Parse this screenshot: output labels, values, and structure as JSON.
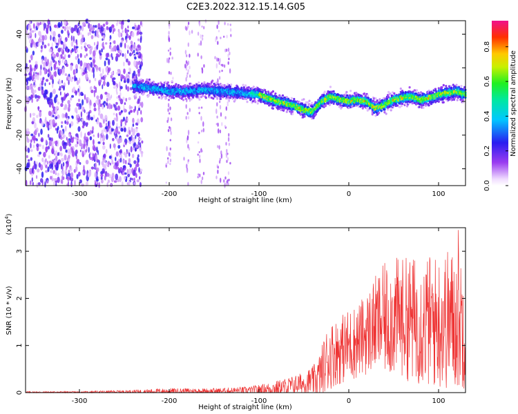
{
  "title": "C2E3.2022.312.15.14.G05",
  "colors": {
    "snr_line": "#ee3333",
    "axis": "#000000",
    "background": "#ffffff"
  },
  "chart_data": [
    {
      "type": "heatmap",
      "title": "C2E3.2022.312.15.14.G05",
      "xlabel": "Height of straight line (km)",
      "ylabel": "Frequency (Hz)",
      "xlim": [
        -360,
        130
      ],
      "ylim": [
        -50,
        48
      ],
      "xticks": [
        -300,
        -200,
        -100,
        0,
        100
      ],
      "xtick_labels": [
        "-300",
        "-200",
        "-100",
        "0",
        "100"
      ],
      "yticks": [
        -40,
        -20,
        0,
        20,
        40
      ],
      "ytick_labels": [
        "-40",
        "-20",
        "0",
        "20",
        "40"
      ],
      "colorbar": {
        "label": "Normalized spectral amplitude",
        "range": [
          0,
          0.95
        ],
        "ticks": [
          0.0,
          0.2,
          0.4,
          0.6,
          0.8
        ],
        "tick_labels": [
          "0.0",
          "0.2",
          "0.4",
          "0.6",
          "0.8"
        ],
        "colormap": "rainbow (white-violet-blue-cyan-green-yellow-orange-red-magenta)"
      },
      "ridge": {
        "x": [
          -240,
          -220,
          -200,
          -180,
          -160,
          -140,
          -120,
          -100,
          -90,
          -80,
          -70,
          -60,
          -50,
          -40,
          -35,
          -30,
          -20,
          -10,
          0,
          10,
          20,
          30,
          40,
          50,
          60,
          70,
          80,
          90,
          100,
          110,
          120,
          130
        ],
        "y": [
          9,
          8,
          6,
          6,
          7,
          6,
          5,
          4,
          2,
          0,
          -1,
          -3,
          -5,
          -6,
          -3,
          0,
          3,
          1,
          0,
          1,
          0,
          -4,
          -2,
          1,
          2,
          3,
          1,
          2,
          4,
          5,
          6,
          4
        ]
      },
      "grid": false
    },
    {
      "type": "line",
      "xlabel": "Height of straight line (km)",
      "ylabel": "SNR (10 * v/v)",
      "yscale_label": "(x10",
      "yscale_exponent": "4",
      "yscale_suffix": ")",
      "xlim": [
        -360,
        130
      ],
      "ylim": [
        0,
        3.5
      ],
      "xticks": [
        -300,
        -200,
        -100,
        0,
        100
      ],
      "xtick_labels": [
        "-300",
        "-200",
        "-100",
        "0",
        "100"
      ],
      "yticks": [
        0,
        1,
        2,
        3
      ],
      "ytick_labels": [
        "0",
        "1",
        "2",
        "3"
      ],
      "envelope": {
        "x": [
          -360,
          -300,
          -250,
          -200,
          -150,
          -110,
          -90,
          -70,
          -50,
          -40,
          -35,
          -30,
          -25,
          -20,
          -10,
          0,
          10,
          20,
          30,
          40,
          50,
          60,
          70,
          80,
          90,
          100,
          110,
          120,
          130
        ],
        "mean": [
          0.01,
          0.01,
          0.02,
          0.03,
          0.03,
          0.05,
          0.08,
          0.12,
          0.2,
          0.25,
          0.3,
          0.45,
          0.65,
          0.8,
          0.9,
          1.0,
          1.1,
          1.25,
          1.45,
          1.55,
          1.6,
          1.6,
          1.55,
          1.5,
          1.5,
          1.5,
          1.55,
          1.55,
          1.5
        ],
        "spread": [
          0.01,
          0.01,
          0.02,
          0.04,
          0.04,
          0.05,
          0.08,
          0.12,
          0.15,
          0.2,
          0.25,
          0.35,
          0.45,
          0.45,
          0.45,
          0.5,
          0.5,
          0.55,
          0.65,
          0.75,
          0.8,
          0.8,
          0.85,
          0.85,
          0.9,
          0.9,
          0.95,
          0.95,
          0.9
        ]
      },
      "peak": {
        "x": 122,
        "y": 3.45
      },
      "grid": false
    }
  ]
}
